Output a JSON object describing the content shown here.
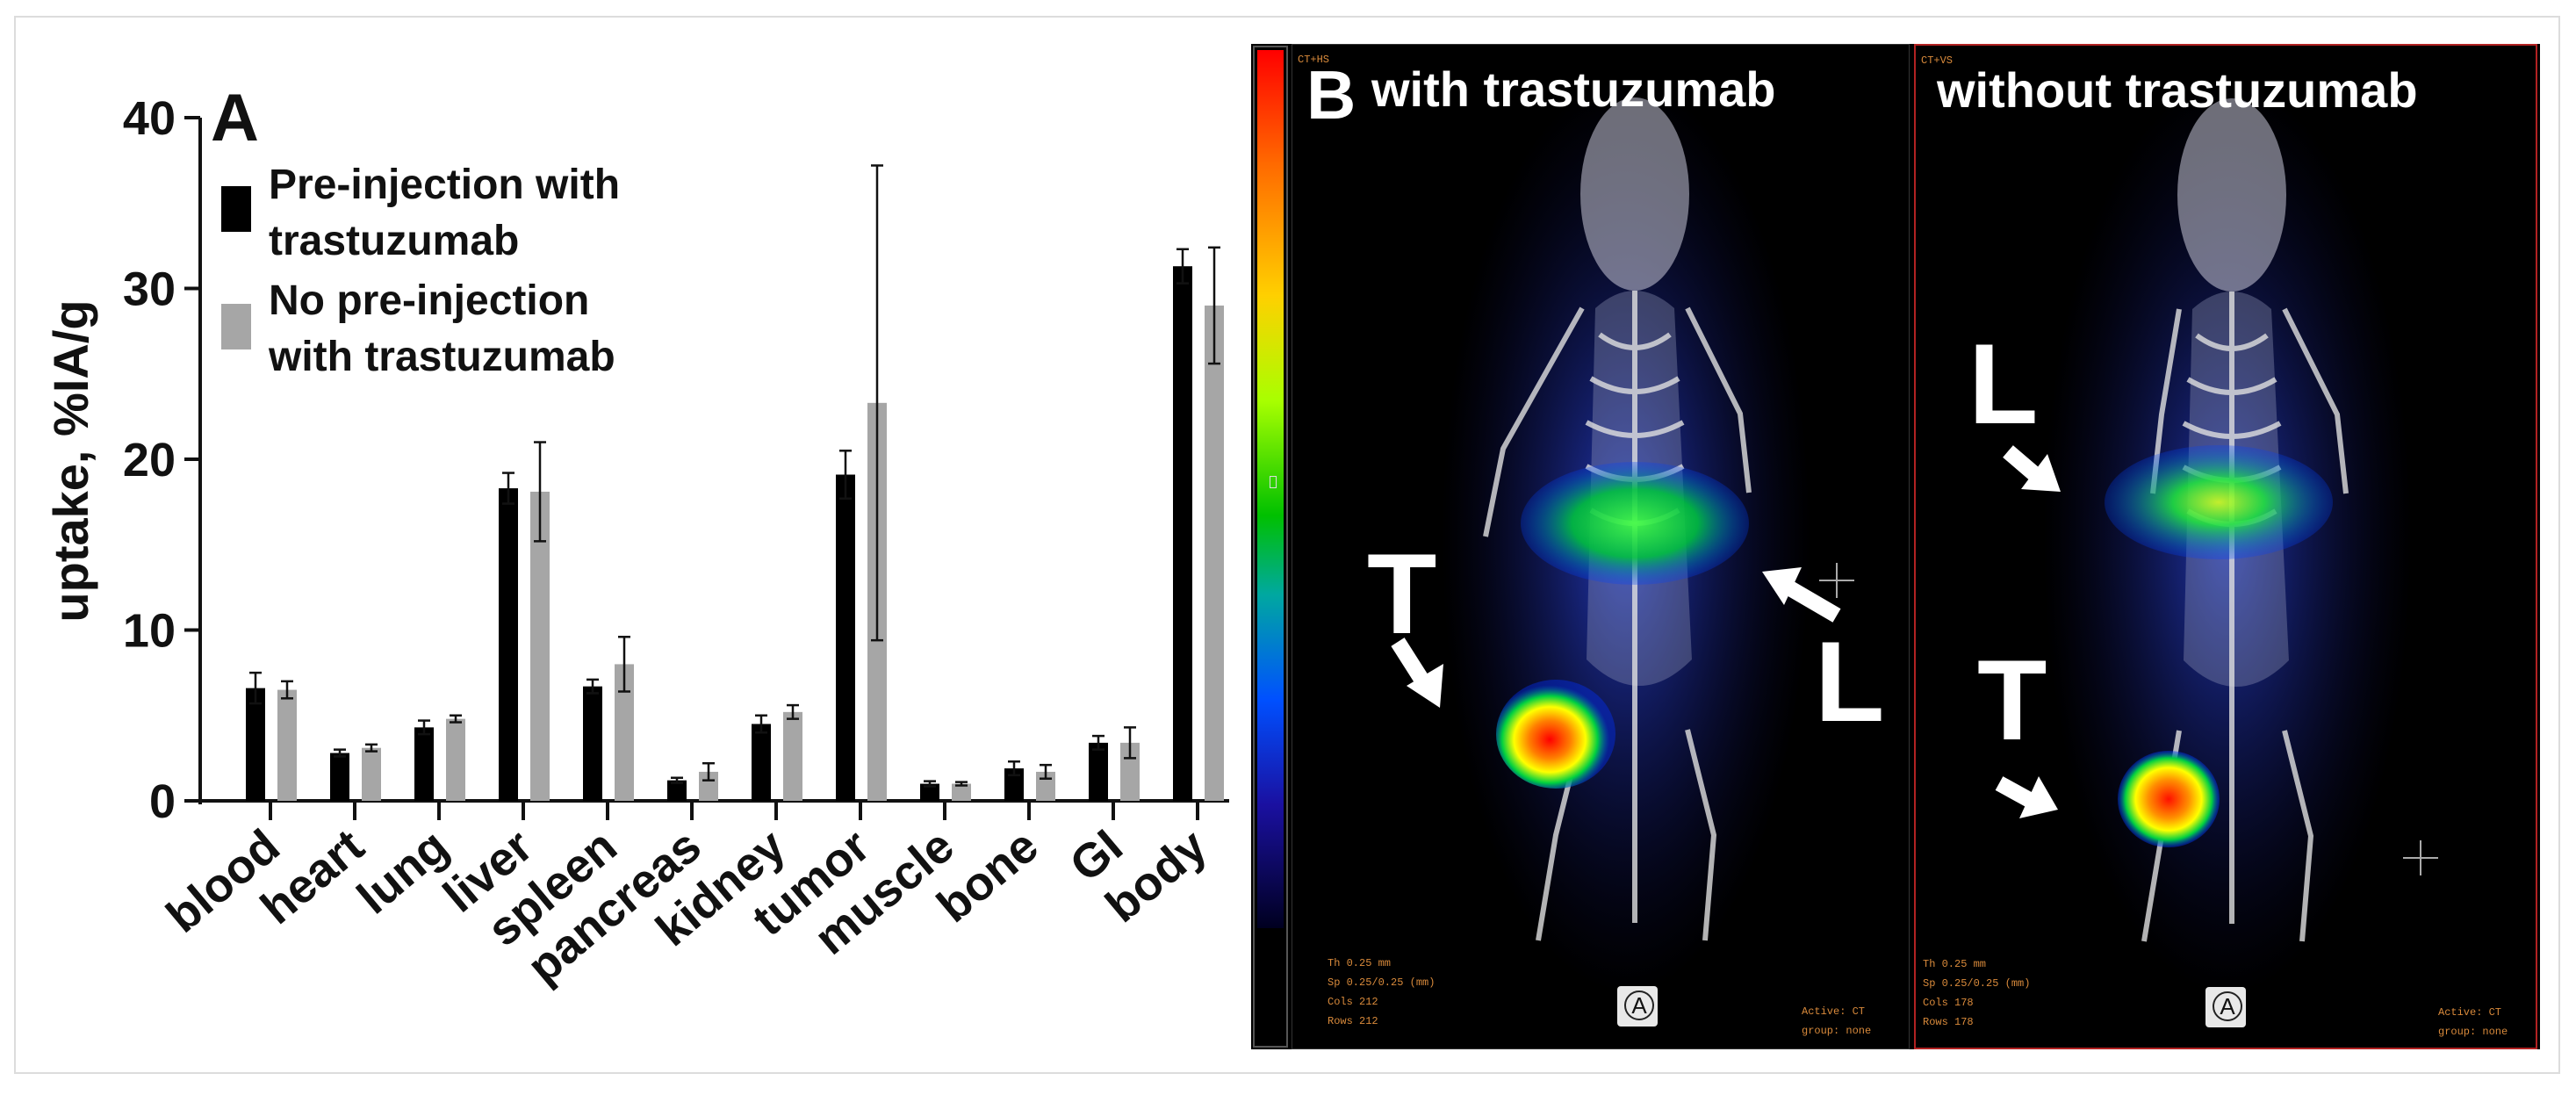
{
  "chart_data": {
    "type": "bar",
    "panel_label": "A",
    "ylabel": "uptake, %IA/g",
    "xlabel": "",
    "ylim": [
      0,
      40
    ],
    "yticks": [
      "0",
      "10",
      "20",
      "30",
      "40"
    ],
    "categories": [
      "blood",
      "heart",
      "lung",
      "liver",
      "spleen",
      "pancreas",
      "kidney",
      "tumor",
      "muscle",
      "bone",
      "GI",
      "body"
    ],
    "series": [
      {
        "name": "Pre-injection with trastuzumab",
        "legend_lines": [
          "Pre-injection with",
          "trastuzumab"
        ],
        "color": "#000000",
        "values": [
          6.6,
          2.8,
          4.3,
          18.3,
          6.7,
          1.2,
          4.5,
          19.1,
          1.0,
          1.9,
          3.4,
          31.3
        ],
        "errors": [
          0.9,
          0.2,
          0.4,
          0.9,
          0.4,
          0.15,
          0.5,
          1.4,
          0.15,
          0.4,
          0.4,
          1.0
        ]
      },
      {
        "name": "No pre-injection with trastuzumab",
        "legend_lines": [
          "No pre-injection",
          "with trastuzumab"
        ],
        "color": "#a6a6a6",
        "values": [
          6.5,
          3.1,
          4.8,
          18.1,
          8.0,
          1.7,
          5.2,
          23.3,
          1.0,
          1.7,
          3.4,
          29.0
        ],
        "errors": [
          0.5,
          0.2,
          0.2,
          2.9,
          1.6,
          0.5,
          0.4,
          13.9,
          0.1,
          0.4,
          0.9,
          3.4
        ]
      }
    ]
  },
  "panel_b": {
    "label": "B",
    "left": {
      "title": "with trastuzumab",
      "tumor_label": "T",
      "liver_label": "L",
      "corner_text": "CT+HS",
      "meta_lines": [
        "Th 0.25 mm",
        "Sp 0.25/0.25 (mm)",
        "Cols 212",
        "Rows 212"
      ],
      "meta_right": [
        "Active: CT",
        "group: none"
      ],
      "orientation_badge": "A"
    },
    "right": {
      "title": "without trastuzumab",
      "tumor_label": "T",
      "liver_label": "L",
      "corner_text": "CT+VS",
      "meta_lines": [
        "Th 0.25 mm",
        "Sp 0.25/0.25 (mm)",
        "Cols 178",
        "Rows 178"
      ],
      "meta_right": [
        "Active: CT",
        "group: none"
      ],
      "orientation_badge": "A"
    }
  }
}
